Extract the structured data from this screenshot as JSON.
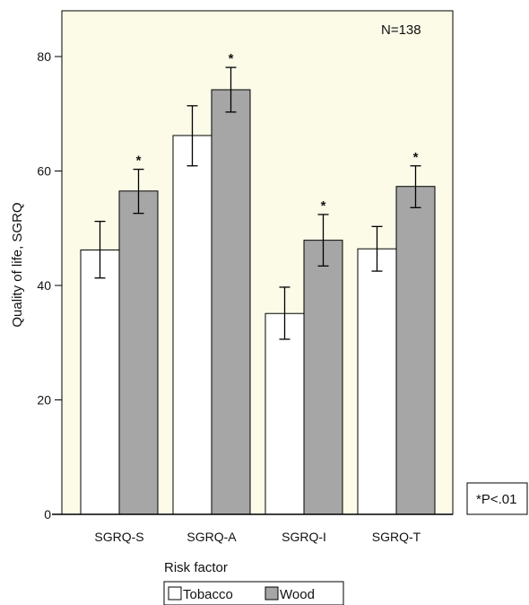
{
  "chart_data": {
    "type": "bar",
    "categories": [
      "SGRQ-S",
      "SGRQ-A",
      "SGRQ-I",
      "SGRQ-T"
    ],
    "series": [
      {
        "name": "Tobacco",
        "values": [
          46.2,
          66.2,
          35.1,
          46.4
        ],
        "err_low": [
          41.3,
          60.9,
          30.6,
          42.5
        ],
        "err_high": [
          51.2,
          71.4,
          39.7,
          50.3
        ],
        "color": "#ffffff"
      },
      {
        "name": "Wood",
        "values": [
          56.5,
          74.2,
          47.9,
          57.3
        ],
        "err_low": [
          52.6,
          70.3,
          43.4,
          53.6
        ],
        "err_high": [
          60.3,
          78.1,
          52.4,
          60.9
        ],
        "color": "#a6a6a6"
      }
    ],
    "significance_marker": "*",
    "ylabel": "Quality of life, SGRQ",
    "ylim": [
      0,
      88
    ],
    "yticks": [
      0,
      20,
      40,
      60,
      80
    ],
    "plot_background": "#fbfbe8",
    "annotation": "N=138",
    "footnote": "*P<.01",
    "legend_title": "Risk factor",
    "legend_position": "bottom-center"
  }
}
